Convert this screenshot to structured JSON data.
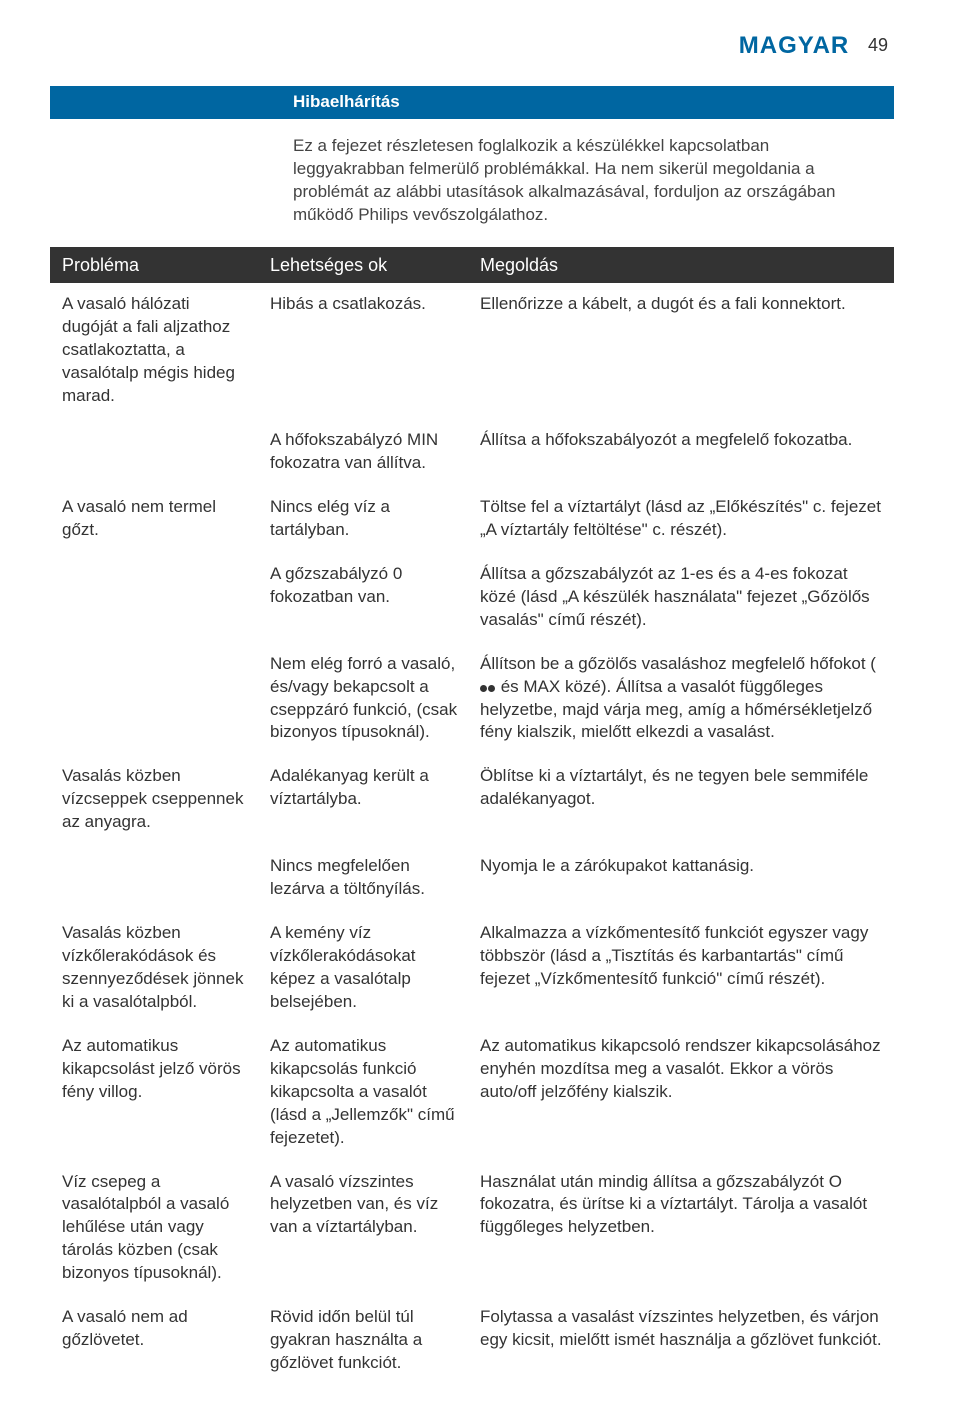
{
  "header": {
    "language": "MAGYAR",
    "page_number": "49"
  },
  "section_title": "Hibaelhárítás",
  "intro_text": "Ez a fejezet részletesen foglalkozik a készülékkel kapcsolatban leggyakrabban felmerülő problémákkal. Ha nem sikerül megoldania a problémát az alábbi utasítások alkalmazásával, forduljon az országában működő Philips vevőszolgálathoz.",
  "columns": {
    "problem": "Probléma",
    "cause": "Lehetséges ok",
    "solution": "Megoldás"
  },
  "rows": [
    {
      "problem": "A vasaló hálózati dugóját a fali aljzathoz csatlakoztatta, a vasalótalp mégis hideg marad.",
      "cause": "Hibás a csatlakozás.",
      "solution": "Ellenőrizze a kábelt, a dugót és a fali konnektort."
    },
    {
      "problem": "",
      "cause": "A hőfokszabályzó MIN fokozatra van állítva.",
      "solution": "Állítsa a hőfokszabályozót a megfelelő fokozatba."
    },
    {
      "problem": "A vasaló nem termel gőzt.",
      "cause": "Nincs elég víz a tartályban.",
      "solution": "Töltse fel a víztartályt (lásd az „Előkészítés\" c. fejezet „A víztartály feltöltése\" c. részét)."
    },
    {
      "problem": "",
      "cause": "A gőzszabályzó 0 fokozatban van.",
      "solution": "Állítsa a gőzszabályzót az 1-es és a 4-es fokozat közé (lásd „A készülék használata\" fejezet „Gőzölős vasalás\" című részét)."
    },
    {
      "problem": "",
      "cause": "Nem elég forró a vasaló, és/vagy bekapcsolt a cseppzáró funkció, (csak bizonyos típusoknál).",
      "solution_pre": "Állítson be a gőzölős vasaláshoz megfelelő hőfokot ( ",
      "solution_post": " és MAX közé). Állítsa a vasalót függőleges helyzetbe, majd várja meg, amíg a hőmérsékletjelző fény kialszik, mielőtt elkezdi a vasalást.",
      "has_dots": true
    },
    {
      "problem": "Vasalás közben vízcseppek cseppennek az anyagra.",
      "cause": "Adalékanyag került a víztartályba.",
      "solution": "Öblítse ki a víztartályt, és ne tegyen bele semmiféle adalékanyagot."
    },
    {
      "problem": "",
      "cause": "Nincs megfelelően lezárva a töltőnyílás.",
      "solution": "Nyomja le a zárókupakot kattanásig."
    },
    {
      "problem": "Vasalás közben vízkőlerakódások és szennyeződések jönnek ki a vasalótalpból.",
      "cause": "A kemény víz vízkőlerakódásokat képez a vasalótalp belsejében.",
      "solution": "Alkalmazza a vízkőmentesítő funkciót egyszer vagy többször (lásd a „Tisztítás és karbantartás\" című fejezet „Vízkőmentesítő funkció\" című részét)."
    },
    {
      "problem": "Az automatikus kikapcsolást jelző vörös fény villog.",
      "cause": "Az automatikus kikapcsolás funkció kikapcsolta a vasalót (lásd a „Jellemzők\" című fejezetet).",
      "solution": "Az automatikus kikapcsoló rendszer kikapcsolásához enyhén mozdítsa meg a vasalót. Ekkor a vörös auto/off jelzőfény kialszik."
    },
    {
      "problem": "Víz csepeg a vasalótalpból a vasaló lehűlése után vagy tárolás közben (csak bizonyos típusoknál).",
      "cause": "A vasaló vízszintes helyzetben van, és víz van a víztartályban.",
      "solution": "Használat után mindig állítsa a gőzszabályzót O fokozatra, és ürítse ki a víztartályt. Tárolja a vasalót függőleges helyzetben."
    },
    {
      "problem": "A vasaló nem ad gőzlövetet.",
      "cause": "Rövid időn belül túl gyakran használta a gőzlövet funkciót.",
      "solution": "Folytassa a vasalást vízszintes helyzetben, és várjon egy kicsit, mielőtt ismét használja a gőzlövet funkciót."
    }
  ],
  "colors": {
    "accent": "#0066a1",
    "header_bg": "#333333",
    "text": "#333333",
    "background": "#ffffff"
  }
}
